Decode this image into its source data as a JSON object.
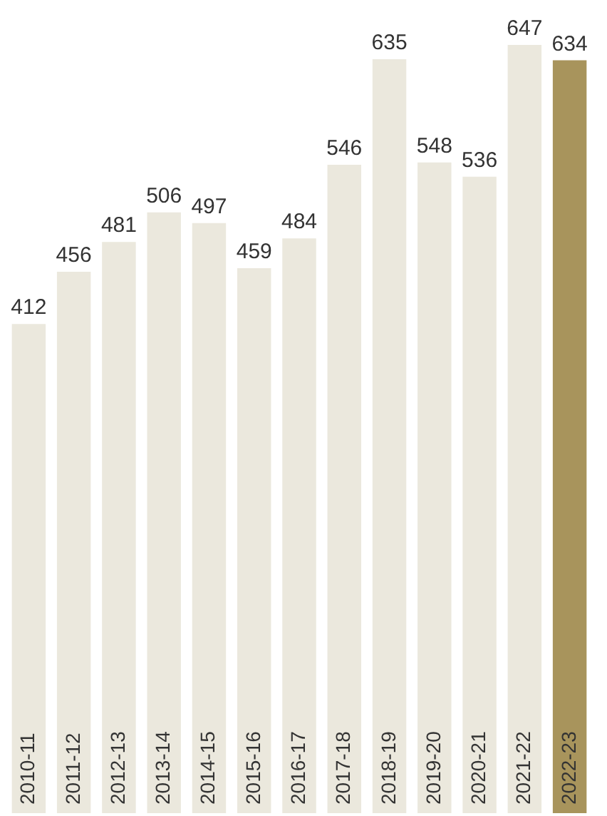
{
  "chart_data": {
    "type": "bar",
    "categories": [
      "2010-11",
      "2011-12",
      "2012-13",
      "2013-14",
      "2014-15",
      "2015-16",
      "2016-17",
      "2017-18",
      "2018-19",
      "2019-20",
      "2020-21",
      "2021-22",
      "2022-23"
    ],
    "values": [
      412,
      456,
      481,
      506,
      497,
      459,
      484,
      546,
      635,
      548,
      536,
      647,
      634
    ],
    "colors": [
      "#ebe8dd",
      "#ebe8dd",
      "#ebe8dd",
      "#ebe8dd",
      "#ebe8dd",
      "#ebe8dd",
      "#ebe8dd",
      "#ebe8dd",
      "#ebe8dd",
      "#ebe8dd",
      "#ebe8dd",
      "#ebe8dd",
      "#a8945c"
    ],
    "ylim": [
      0,
      680
    ],
    "data_labels": true,
    "grid": false,
    "tick_labels": false
  }
}
